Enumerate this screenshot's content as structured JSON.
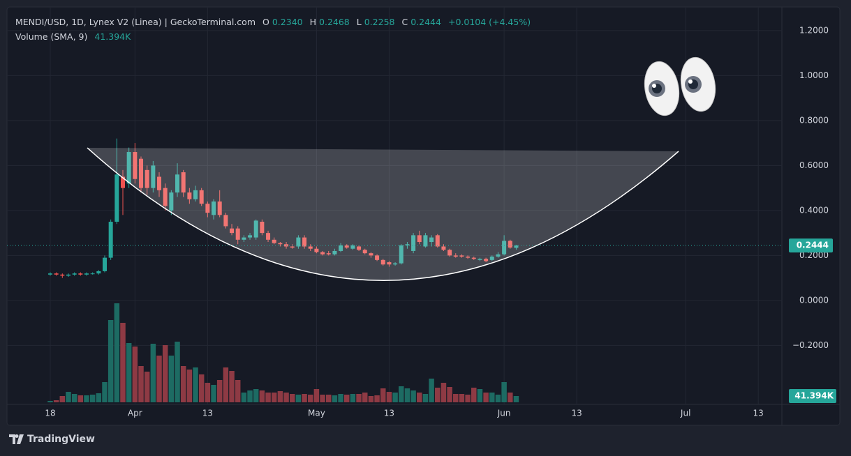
{
  "header": {
    "symbol": "MENDI/USD, 1D, Lynex V2 (Linea) | GeckoTerminal.com",
    "o_label": "O",
    "o_value": "0.2340",
    "h_label": "H",
    "h_value": "0.2468",
    "l_label": "L",
    "l_value": "0.2258",
    "c_label": "C",
    "c_value": "0.2444",
    "change": "+0.0104 (+4.45%)",
    "volume_title": "Volume (SMA, 9)",
    "volume_value": "41.394K"
  },
  "branding": "TradingView",
  "chart_data": {
    "type": "candlestick",
    "up_color": "#26a69a",
    "down_color": "#ef5350",
    "volume_up_color": "#1d6b63",
    "volume_down_color": "#8e3a44",
    "grid": true,
    "xlim": [
      -7.15,
      120.9
    ],
    "xticks": [
      {
        "value": 0,
        "label": "18"
      },
      {
        "value": 14,
        "label": "Apr"
      },
      {
        "value": 26,
        "label": "13"
      },
      {
        "value": 44,
        "label": "May"
      },
      {
        "value": 56,
        "label": "13"
      },
      {
        "value": 75,
        "label": "Jun"
      },
      {
        "value": 87,
        "label": "13"
      },
      {
        "value": 105,
        "label": "Jul"
      },
      {
        "value": 117,
        "label": "13"
      }
    ],
    "ylim": [
      -0.453,
      1.305
    ],
    "yticks": [
      {
        "value": 1.2,
        "label": "1.2000"
      },
      {
        "value": 1.0,
        "label": "1.0000"
      },
      {
        "value": 0.8,
        "label": "0.8000"
      },
      {
        "value": 0.6,
        "label": "0.6000"
      },
      {
        "value": 0.4,
        "label": "0.4000"
      },
      {
        "value": 0.2,
        "label": "0.2000"
      },
      {
        "value": 0,
        "label": "0.0000"
      },
      {
        "value": -0.2,
        "label": "−0.2000"
      }
    ],
    "last_price": 0.2444,
    "x": [
      0,
      1,
      2,
      3,
      4,
      5,
      6,
      7,
      8,
      9,
      10,
      11,
      12,
      13,
      14,
      15,
      16,
      17,
      18,
      19,
      20,
      21,
      22,
      23,
      24,
      25,
      26,
      27,
      28,
      29,
      30,
      31,
      32,
      33,
      34,
      35,
      36,
      37,
      38,
      39,
      40,
      41,
      42,
      43,
      44,
      45,
      46,
      47,
      48,
      49,
      50,
      51,
      52,
      53,
      54,
      55,
      56,
      57,
      58,
      59,
      60,
      61,
      62,
      63,
      64,
      65,
      66,
      67,
      68,
      69,
      70,
      71,
      72,
      73,
      74,
      75,
      76,
      77
    ],
    "open": [
      0.115,
      0.12,
      0.115,
      0.11,
      0.115,
      0.12,
      0.115,
      0.12,
      0.12,
      0.13,
      0.19,
      0.35,
      0.55,
      0.52,
      0.66,
      0.63,
      0.58,
      0.5,
      0.55,
      0.5,
      0.4,
      0.48,
      0.57,
      0.48,
      0.45,
      0.49,
      0.43,
      0.38,
      0.44,
      0.38,
      0.32,
      0.32,
      0.27,
      0.28,
      0.28,
      0.35,
      0.3,
      0.27,
      0.255,
      0.25,
      0.24,
      0.24,
      0.28,
      0.24,
      0.23,
      0.215,
      0.21,
      0.205,
      0.22,
      0.245,
      0.23,
      0.24,
      0.225,
      0.21,
      0.2,
      0.18,
      0.17,
      0.16,
      0.165,
      0.245,
      0.22,
      0.29,
      0.24,
      0.26,
      0.29,
      0.24,
      0.225,
      0.2,
      0.2,
      0.195,
      0.19,
      0.18,
      0.185,
      0.18,
      0.195,
      0.205,
      0.265,
      0.234
    ],
    "high": [
      0.125,
      0.125,
      0.12,
      0.12,
      0.125,
      0.125,
      0.125,
      0.125,
      0.135,
      0.2,
      0.36,
      0.72,
      0.58,
      0.68,
      0.7,
      0.64,
      0.6,
      0.62,
      0.57,
      0.52,
      0.49,
      0.61,
      0.58,
      0.5,
      0.51,
      0.5,
      0.44,
      0.45,
      0.49,
      0.39,
      0.34,
      0.33,
      0.29,
      0.3,
      0.36,
      0.36,
      0.31,
      0.28,
      0.26,
      0.26,
      0.25,
      0.29,
      0.29,
      0.25,
      0.24,
      0.22,
      0.22,
      0.23,
      0.255,
      0.25,
      0.25,
      0.245,
      0.23,
      0.215,
      0.205,
      0.185,
      0.175,
      0.17,
      0.25,
      0.26,
      0.3,
      0.31,
      0.3,
      0.29,
      0.295,
      0.25,
      0.23,
      0.21,
      0.205,
      0.2,
      0.195,
      0.19,
      0.19,
      0.2,
      0.215,
      0.29,
      0.27,
      0.2468
    ],
    "low": [
      0.11,
      0.11,
      0.1,
      0.105,
      0.11,
      0.11,
      0.11,
      0.115,
      0.115,
      0.125,
      0.18,
      0.34,
      0.38,
      0.5,
      0.52,
      0.48,
      0.47,
      0.48,
      0.46,
      0.4,
      0.38,
      0.46,
      0.46,
      0.43,
      0.44,
      0.42,
      0.37,
      0.36,
      0.37,
      0.32,
      0.29,
      0.25,
      0.26,
      0.27,
      0.27,
      0.29,
      0.26,
      0.25,
      0.24,
      0.23,
      0.23,
      0.23,
      0.23,
      0.22,
      0.21,
      0.2,
      0.2,
      0.2,
      0.215,
      0.23,
      0.225,
      0.22,
      0.205,
      0.19,
      0.175,
      0.155,
      0.15,
      0.155,
      0.16,
      0.23,
      0.21,
      0.25,
      0.235,
      0.24,
      0.235,
      0.22,
      0.195,
      0.19,
      0.19,
      0.185,
      0.18,
      0.175,
      0.17,
      0.175,
      0.19,
      0.2,
      0.23,
      0.2258
    ],
    "close": [
      0.12,
      0.115,
      0.11,
      0.115,
      0.12,
      0.115,
      0.12,
      0.12,
      0.13,
      0.19,
      0.35,
      0.56,
      0.5,
      0.66,
      0.54,
      0.5,
      0.5,
      0.6,
      0.49,
      0.42,
      0.48,
      0.56,
      0.48,
      0.45,
      0.49,
      0.43,
      0.39,
      0.44,
      0.38,
      0.33,
      0.3,
      0.27,
      0.28,
      0.29,
      0.355,
      0.3,
      0.27,
      0.255,
      0.25,
      0.24,
      0.235,
      0.28,
      0.24,
      0.23,
      0.215,
      0.205,
      0.205,
      0.22,
      0.245,
      0.235,
      0.245,
      0.225,
      0.21,
      0.2,
      0.18,
      0.16,
      0.16,
      0.165,
      0.245,
      0.25,
      0.29,
      0.26,
      0.29,
      0.28,
      0.24,
      0.225,
      0.2,
      0.195,
      0.195,
      0.19,
      0.185,
      0.185,
      0.175,
      0.195,
      0.205,
      0.265,
      0.235,
      0.2444
    ],
    "volume": [
      9200,
      13800,
      41400,
      69000,
      55200,
      46000,
      46000,
      50600,
      59800,
      133400,
      542800,
      653200,
      524400,
      391000,
      368000,
      239200,
      202400,
      386400,
      308200,
      377200,
      308200,
      400200,
      239200,
      216200,
      230000,
      184000,
      128800,
      115000,
      147200,
      230000,
      207000,
      147200,
      64400,
      78200,
      87400,
      78200,
      64400,
      64400,
      73600,
      64400,
      55200,
      50600,
      55200,
      50600,
      87400,
      50600,
      50600,
      46000,
      55200,
      50600,
      55200,
      55200,
      64400,
      41400,
      46000,
      92000,
      69000,
      64400,
      105800,
      92000,
      78200,
      64400,
      55200,
      156400,
      96600,
      128800,
      101200,
      55200,
      55200,
      50600,
      96600,
      87400,
      64400,
      64400,
      50600,
      133400,
      64400,
      41394
    ]
  }
}
